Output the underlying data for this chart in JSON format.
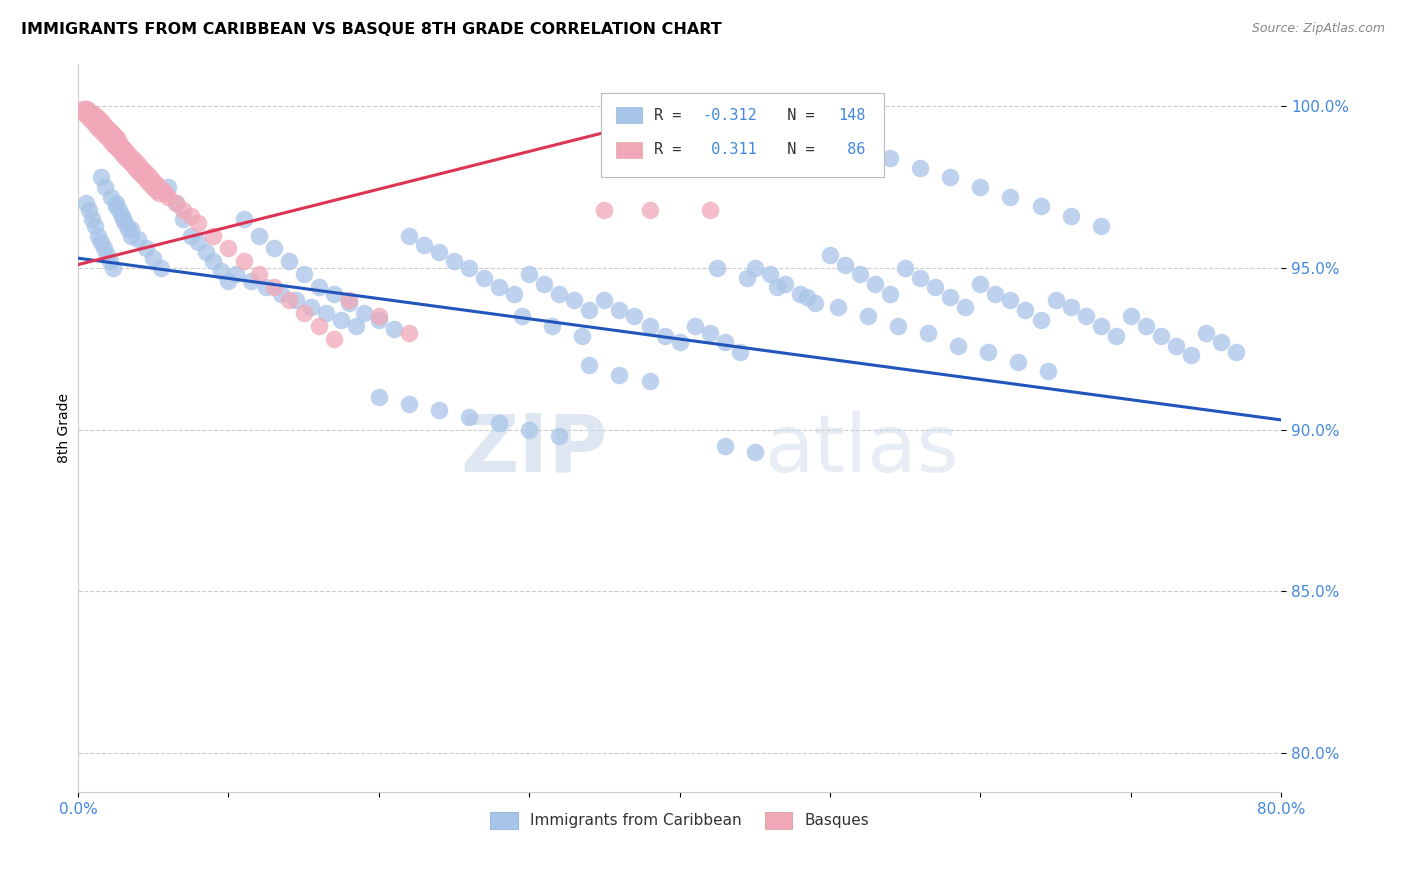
{
  "title": "IMMIGRANTS FROM CARIBBEAN VS BASQUE 8TH GRADE CORRELATION CHART",
  "source": "Source: ZipAtlas.com",
  "ylabel": "8th Grade",
  "ytick_labels": [
    "100.0%",
    "95.0%",
    "90.0%",
    "85.0%",
    "80.0%"
  ],
  "ytick_values": [
    1.0,
    0.95,
    0.9,
    0.85,
    0.8
  ],
  "xmin": 0.0,
  "xmax": 0.8,
  "ymin": 0.788,
  "ymax": 1.013,
  "blue_color": "#a8c4e8",
  "pink_color": "#f0a8b8",
  "blue_line_color": "#2255bb",
  "pink_line_color": "#dd3355",
  "legend_blue_R": "-0.312",
  "legend_blue_N": "148",
  "legend_pink_R": "0.311",
  "legend_pink_N": "86",
  "watermark_zip": "ZIP",
  "watermark_atlas": "atlas",
  "blue_trend_x0": 0.0,
  "blue_trend_y0": 0.953,
  "blue_trend_x1": 0.8,
  "blue_trend_y1": 0.903,
  "pink_trend_x0": 0.0,
  "pink_trend_y0": 0.951,
  "pink_trend_x1": 0.42,
  "pink_trend_y1": 1.0,
  "blue_scatter_x": [
    0.005,
    0.007,
    0.009,
    0.011,
    0.013,
    0.015,
    0.017,
    0.019,
    0.021,
    0.023,
    0.025,
    0.027,
    0.029,
    0.031,
    0.033,
    0.035,
    0.015,
    0.018,
    0.022,
    0.025,
    0.03,
    0.035,
    0.04,
    0.045,
    0.05,
    0.055,
    0.06,
    0.065,
    0.07,
    0.075,
    0.08,
    0.085,
    0.09,
    0.095,
    0.1,
    0.11,
    0.12,
    0.13,
    0.14,
    0.15,
    0.16,
    0.17,
    0.18,
    0.19,
    0.2,
    0.21,
    0.22,
    0.23,
    0.24,
    0.25,
    0.26,
    0.27,
    0.28,
    0.29,
    0.3,
    0.31,
    0.32,
    0.33,
    0.34,
    0.35,
    0.36,
    0.37,
    0.38,
    0.39,
    0.4,
    0.41,
    0.42,
    0.43,
    0.44,
    0.45,
    0.46,
    0.47,
    0.48,
    0.49,
    0.5,
    0.51,
    0.52,
    0.53,
    0.54,
    0.55,
    0.56,
    0.57,
    0.58,
    0.59,
    0.6,
    0.61,
    0.62,
    0.63,
    0.64,
    0.65,
    0.66,
    0.67,
    0.68,
    0.69,
    0.7,
    0.71,
    0.72,
    0.73,
    0.74,
    0.75,
    0.76,
    0.77,
    0.34,
    0.36,
    0.38,
    0.295,
    0.315,
    0.335,
    0.425,
    0.445,
    0.465,
    0.485,
    0.505,
    0.525,
    0.545,
    0.565,
    0.585,
    0.605,
    0.625,
    0.645,
    0.5,
    0.52,
    0.54,
    0.56,
    0.58,
    0.6,
    0.62,
    0.64,
    0.66,
    0.68,
    0.2,
    0.22,
    0.24,
    0.26,
    0.28,
    0.3,
    0.32,
    0.105,
    0.115,
    0.125,
    0.135,
    0.145,
    0.155,
    0.165,
    0.175,
    0.185,
    0.43,
    0.45
  ],
  "blue_scatter_y": [
    0.97,
    0.968,
    0.965,
    0.963,
    0.96,
    0.958,
    0.956,
    0.954,
    0.952,
    0.95,
    0.97,
    0.968,
    0.966,
    0.964,
    0.962,
    0.96,
    0.978,
    0.975,
    0.972,
    0.969,
    0.965,
    0.962,
    0.959,
    0.956,
    0.953,
    0.95,
    0.975,
    0.97,
    0.965,
    0.96,
    0.958,
    0.955,
    0.952,
    0.949,
    0.946,
    0.965,
    0.96,
    0.956,
    0.952,
    0.948,
    0.944,
    0.942,
    0.939,
    0.936,
    0.934,
    0.931,
    0.96,
    0.957,
    0.955,
    0.952,
    0.95,
    0.947,
    0.944,
    0.942,
    0.948,
    0.945,
    0.942,
    0.94,
    0.937,
    0.94,
    0.937,
    0.935,
    0.932,
    0.929,
    0.927,
    0.932,
    0.93,
    0.927,
    0.924,
    0.95,
    0.948,
    0.945,
    0.942,
    0.939,
    0.954,
    0.951,
    0.948,
    0.945,
    0.942,
    0.95,
    0.947,
    0.944,
    0.941,
    0.938,
    0.945,
    0.942,
    0.94,
    0.937,
    0.934,
    0.94,
    0.938,
    0.935,
    0.932,
    0.929,
    0.935,
    0.932,
    0.929,
    0.926,
    0.923,
    0.93,
    0.927,
    0.924,
    0.92,
    0.917,
    0.915,
    0.935,
    0.932,
    0.929,
    0.95,
    0.947,
    0.944,
    0.941,
    0.938,
    0.935,
    0.932,
    0.93,
    0.926,
    0.924,
    0.921,
    0.918,
    0.99,
    0.987,
    0.984,
    0.981,
    0.978,
    0.975,
    0.972,
    0.969,
    0.966,
    0.963,
    0.91,
    0.908,
    0.906,
    0.904,
    0.902,
    0.9,
    0.898,
    0.948,
    0.946,
    0.944,
    0.942,
    0.94,
    0.938,
    0.936,
    0.934,
    0.932,
    0.895,
    0.893
  ],
  "pink_scatter_x": [
    0.003,
    0.005,
    0.006,
    0.007,
    0.008,
    0.009,
    0.01,
    0.011,
    0.012,
    0.013,
    0.014,
    0.015,
    0.016,
    0.017,
    0.018,
    0.019,
    0.02,
    0.021,
    0.022,
    0.023,
    0.024,
    0.025,
    0.026,
    0.027,
    0.028,
    0.03,
    0.032,
    0.034,
    0.036,
    0.038,
    0.04,
    0.042,
    0.044,
    0.046,
    0.048,
    0.05,
    0.052,
    0.054,
    0.056,
    0.058,
    0.06,
    0.065,
    0.07,
    0.075,
    0.08,
    0.09,
    0.1,
    0.11,
    0.12,
    0.13,
    0.14,
    0.15,
    0.16,
    0.17,
    0.004,
    0.006,
    0.008,
    0.01,
    0.012,
    0.014,
    0.016,
    0.018,
    0.02,
    0.022,
    0.024,
    0.026,
    0.028,
    0.03,
    0.032,
    0.034,
    0.036,
    0.038,
    0.04,
    0.042,
    0.044,
    0.046,
    0.048,
    0.05,
    0.052,
    0.054,
    0.35,
    0.38,
    0.42,
    0.18,
    0.2,
    0.22
  ],
  "pink_scatter_y": [
    0.999,
    0.999,
    0.999,
    0.998,
    0.998,
    0.998,
    0.997,
    0.997,
    0.997,
    0.996,
    0.996,
    0.995,
    0.995,
    0.994,
    0.994,
    0.993,
    0.993,
    0.992,
    0.992,
    0.991,
    0.991,
    0.99,
    0.99,
    0.989,
    0.988,
    0.987,
    0.986,
    0.985,
    0.984,
    0.983,
    0.982,
    0.981,
    0.98,
    0.979,
    0.978,
    0.977,
    0.976,
    0.975,
    0.974,
    0.973,
    0.972,
    0.97,
    0.968,
    0.966,
    0.964,
    0.96,
    0.956,
    0.952,
    0.948,
    0.944,
    0.94,
    0.936,
    0.932,
    0.928,
    0.998,
    0.997,
    0.996,
    0.995,
    0.994,
    0.993,
    0.992,
    0.991,
    0.99,
    0.989,
    0.988,
    0.987,
    0.986,
    0.985,
    0.984,
    0.983,
    0.982,
    0.981,
    0.98,
    0.979,
    0.978,
    0.977,
    0.976,
    0.975,
    0.974,
    0.973,
    0.968,
    0.968,
    0.968,
    0.94,
    0.935,
    0.93
  ]
}
